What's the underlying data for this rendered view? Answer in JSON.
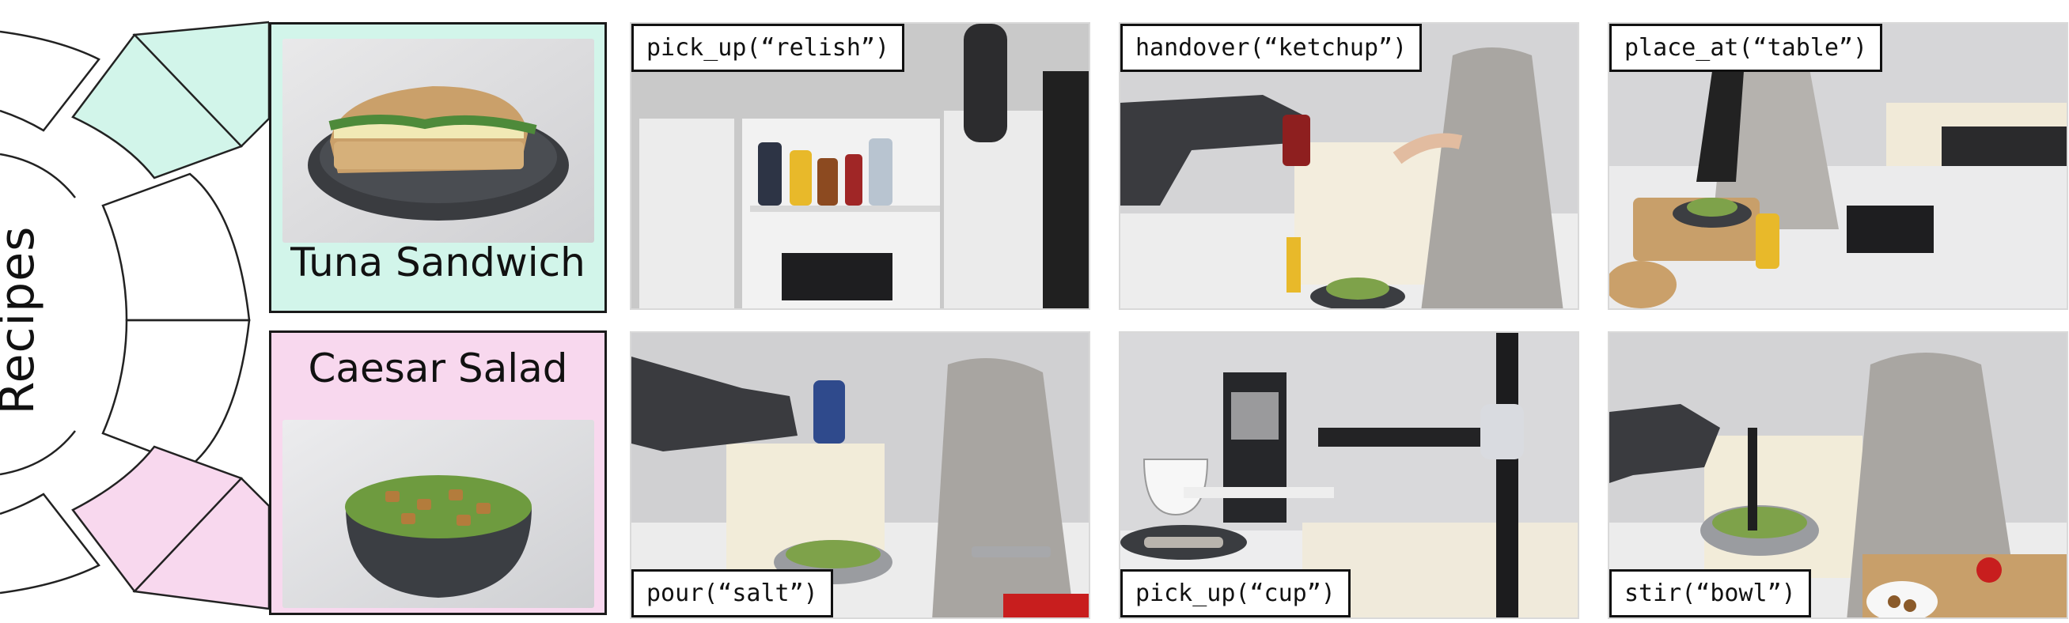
{
  "side_label": "Recipes",
  "recipes": [
    {
      "name": "Tuna Sandwich",
      "color": "#d2f5ea"
    },
    {
      "name": "Caesar Salad",
      "color": "#f8d8ee"
    }
  ],
  "actions": [
    {
      "command": "pick_up(“relish”)"
    },
    {
      "command": "handover(“ketchup”)"
    },
    {
      "command": "place_at(“table”)"
    },
    {
      "command": "pour(“salt”)"
    },
    {
      "command": "pick_up(“cup”)"
    },
    {
      "command": "stir(“bowl”)"
    }
  ]
}
